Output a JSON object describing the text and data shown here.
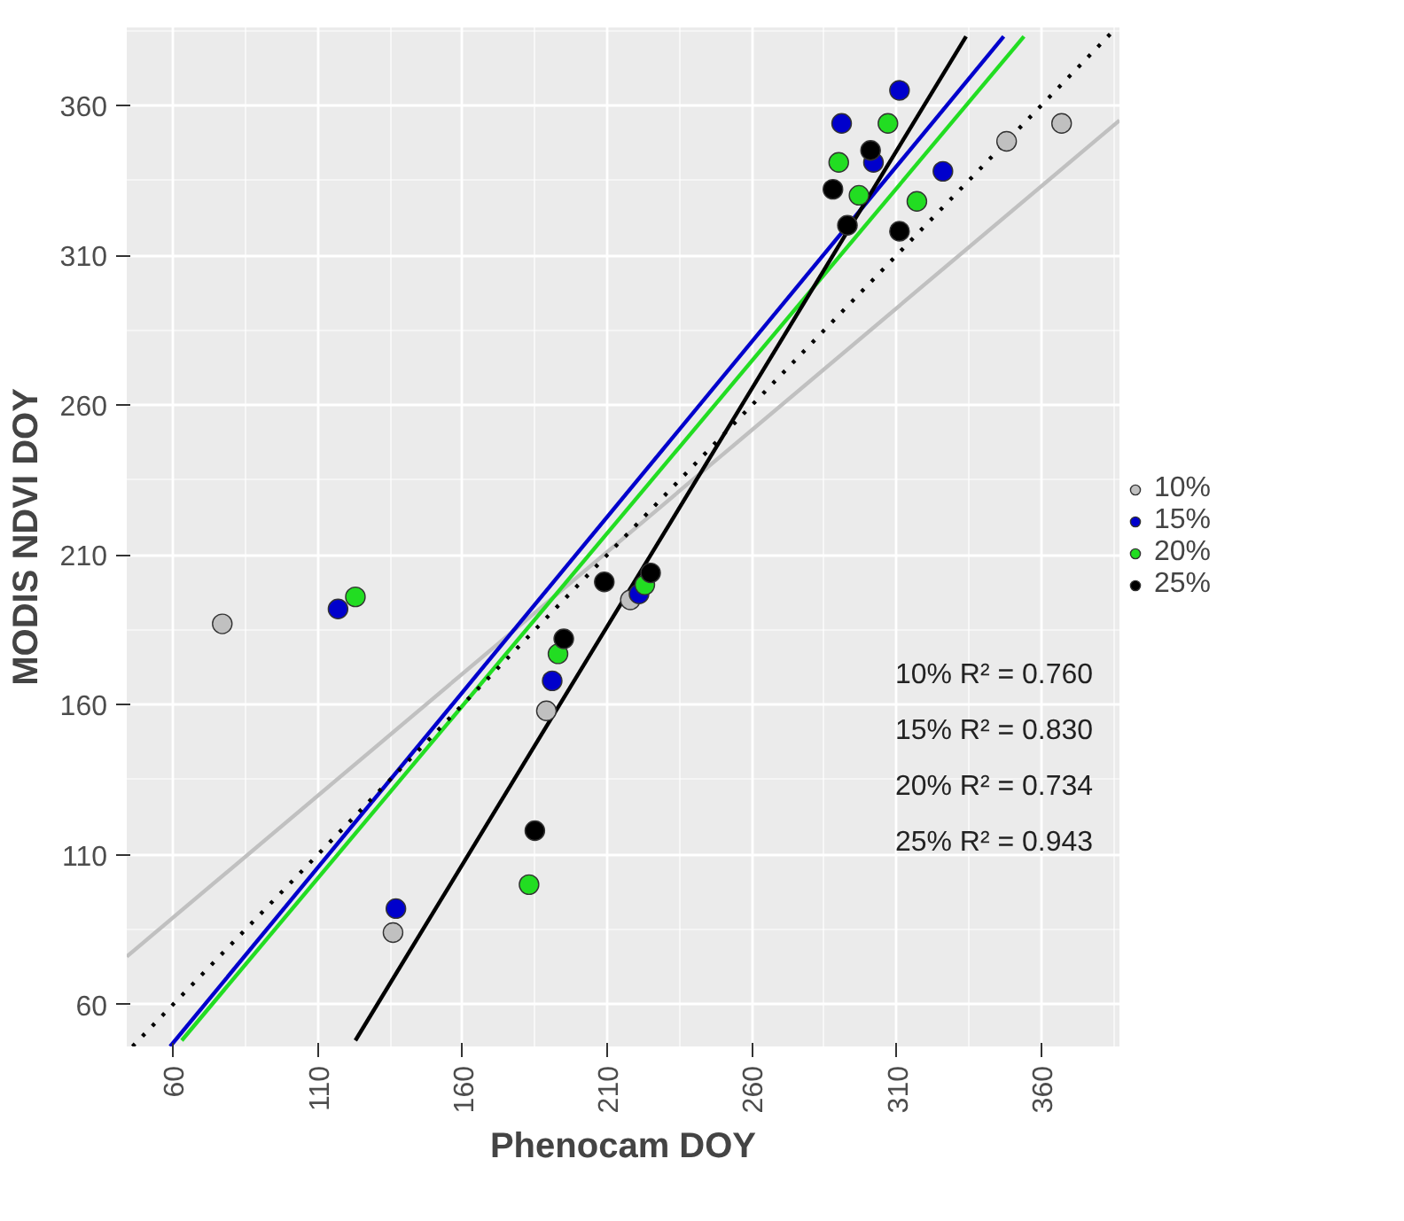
{
  "chart_data": {
    "type": "scatter",
    "xlabel": "Phenocam DOY",
    "ylabel": "MODIS NDVI DOY",
    "xlim": [
      44,
      387
    ],
    "ylim": [
      46,
      386
    ],
    "xticks": [
      60,
      110,
      160,
      210,
      260,
      310,
      360
    ],
    "yticks": [
      60,
      110,
      160,
      210,
      260,
      310,
      360
    ],
    "grid": true,
    "legend": "right",
    "series": [
      {
        "name": "10%",
        "marker": "circle",
        "color": "#c0c0c0",
        "x": [
          348,
          367,
          77,
          136,
          189,
          218
        ],
        "values": [
          348,
          354,
          187,
          84,
          158,
          195
        ]
      },
      {
        "name": "15%",
        "marker": "circle",
        "color": "#0000cc",
        "x": [
          291,
          311,
          302,
          326,
          117,
          137,
          191,
          221
        ],
        "values": [
          354,
          365,
          341,
          338,
          192,
          92,
          168,
          197
        ]
      },
      {
        "name": "20%",
        "marker": "circle",
        "color": "#22dd22",
        "x": [
          307,
          290,
          297,
          317,
          123,
          193,
          183,
          223
        ],
        "values": [
          354,
          341,
          330,
          328,
          196,
          177,
          100,
          200
        ]
      },
      {
        "name": "25%",
        "marker": "circle",
        "color": "#000000",
        "x": [
          301,
          288,
          293,
          311,
          195,
          185,
          209,
          225
        ],
        "values": [
          345,
          332,
          320,
          318,
          182,
          118,
          201,
          204
        ]
      },
      {
        "type": "line",
        "color": "#c0c0c0",
        "x": [
          44,
          387
        ],
        "values": [
          76,
          355
        ]
      },
      {
        "type": "line",
        "color": "#0000cc",
        "x": [
          59,
          347
        ],
        "values": [
          46,
          383
        ]
      },
      {
        "type": "line",
        "color": "#22dd22",
        "x": [
          63,
          354
        ],
        "values": [
          48,
          383
        ]
      },
      {
        "type": "line",
        "color": "#000000",
        "x": [
          123,
          334
        ],
        "values": [
          48,
          383
        ]
      },
      {
        "type": "line",
        "color": "#000000",
        "line_style": "dotted",
        "x": [
          46,
          386
        ],
        "values": [
          46,
          386
        ]
      }
    ],
    "annotations": [
      "10% R² = 0.760",
      "15% R² = 0.830",
      "20% R² = 0.734",
      "25% R² = 0.943"
    ]
  }
}
